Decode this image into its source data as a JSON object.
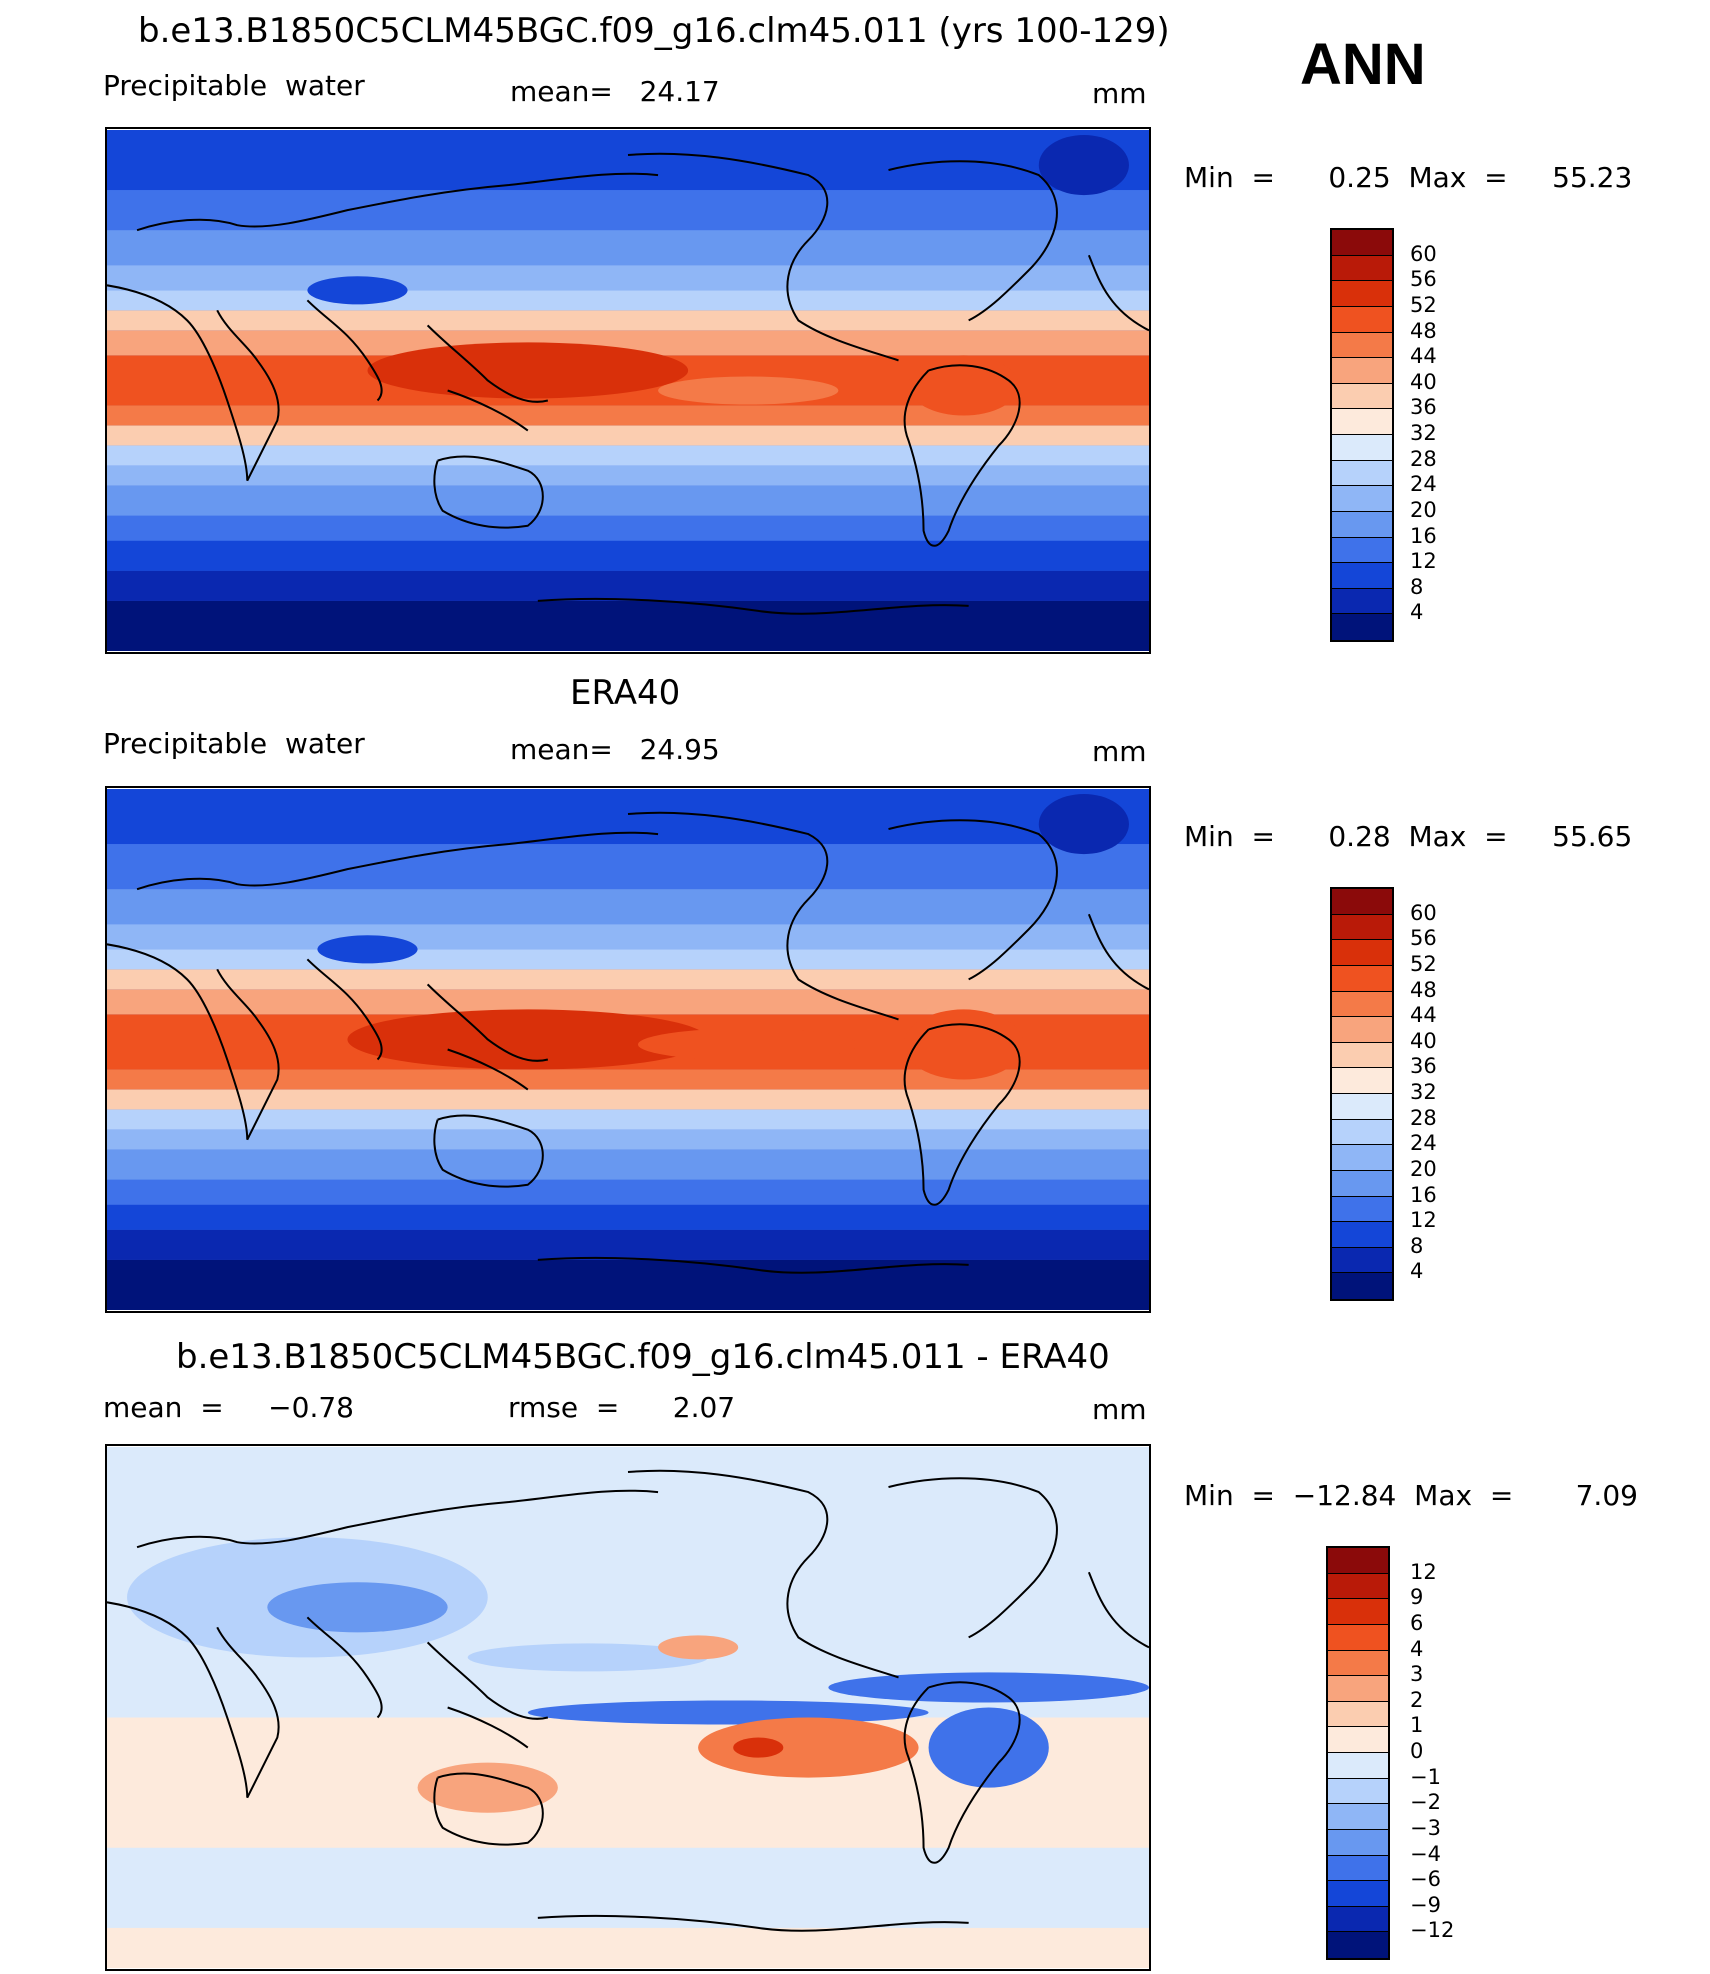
{
  "season": "ANN",
  "panels": [
    {
      "title": "b.e13.B1850C5CLM45BGC.f09_g16.clm45.011 (yrs 100-129)",
      "left_label": "Precipitable  water",
      "center_label": "mean=   24.17",
      "units": "mm",
      "minmax": "Min  =      0.25  Max  =     55.23",
      "colorbar_labels": [
        "60",
        "56",
        "52",
        "48",
        "44",
        "40",
        "36",
        "32",
        "28",
        "24",
        "20",
        "16",
        "12",
        "8",
        "4"
      ],
      "colorbar_colors": [
        "#8b0a0a",
        "#b91a08",
        "#d9300a",
        "#ef5220",
        "#f47a48",
        "#f8a47d",
        "#fbcdb0",
        "#fdeadc",
        "#dbeafb",
        "#b6d2fb",
        "#8fb6f6",
        "#6898f0",
        "#3f72ea",
        "#1446d8",
        "#0a28b0",
        "#00137a"
      ]
    },
    {
      "title": "ERA40",
      "left_label": "Precipitable  water",
      "center_label": "mean=   24.95",
      "units": "mm",
      "minmax": "Min  =      0.28  Max  =     55.65",
      "colorbar_labels": [
        "60",
        "56",
        "52",
        "48",
        "44",
        "40",
        "36",
        "32",
        "28",
        "24",
        "20",
        "16",
        "12",
        "8",
        "4"
      ],
      "colorbar_colors": [
        "#8b0a0a",
        "#b91a08",
        "#d9300a",
        "#ef5220",
        "#f47a48",
        "#f8a47d",
        "#fbcdb0",
        "#fdeadc",
        "#dbeafb",
        "#b6d2fb",
        "#8fb6f6",
        "#6898f0",
        "#3f72ea",
        "#1446d8",
        "#0a28b0",
        "#00137a"
      ]
    },
    {
      "title": "b.e13.B1850C5CLM45BGC.f09_g16.clm45.011 - ERA40",
      "left_label": "mean  =     −0.78",
      "center_label": "rmse  =      2.07",
      "units": "mm",
      "minmax": "Min  =  −12.84  Max  =       7.09",
      "colorbar_labels": [
        "12",
        "9",
        "6",
        "4",
        "3",
        "2",
        "1",
        "0",
        "−1",
        "−2",
        "−3",
        "−4",
        "−6",
        "−9",
        "−12"
      ],
      "colorbar_colors": [
        "#8b0a0a",
        "#b91a08",
        "#d9300a",
        "#ef5220",
        "#f47a48",
        "#f8a47d",
        "#fbcdb0",
        "#fdeadc",
        "#dbeafb",
        "#b6d2fb",
        "#8fb6f6",
        "#6898f0",
        "#3f72ea",
        "#1446d8",
        "#0a28b0",
        "#00137a"
      ]
    }
  ]
}
